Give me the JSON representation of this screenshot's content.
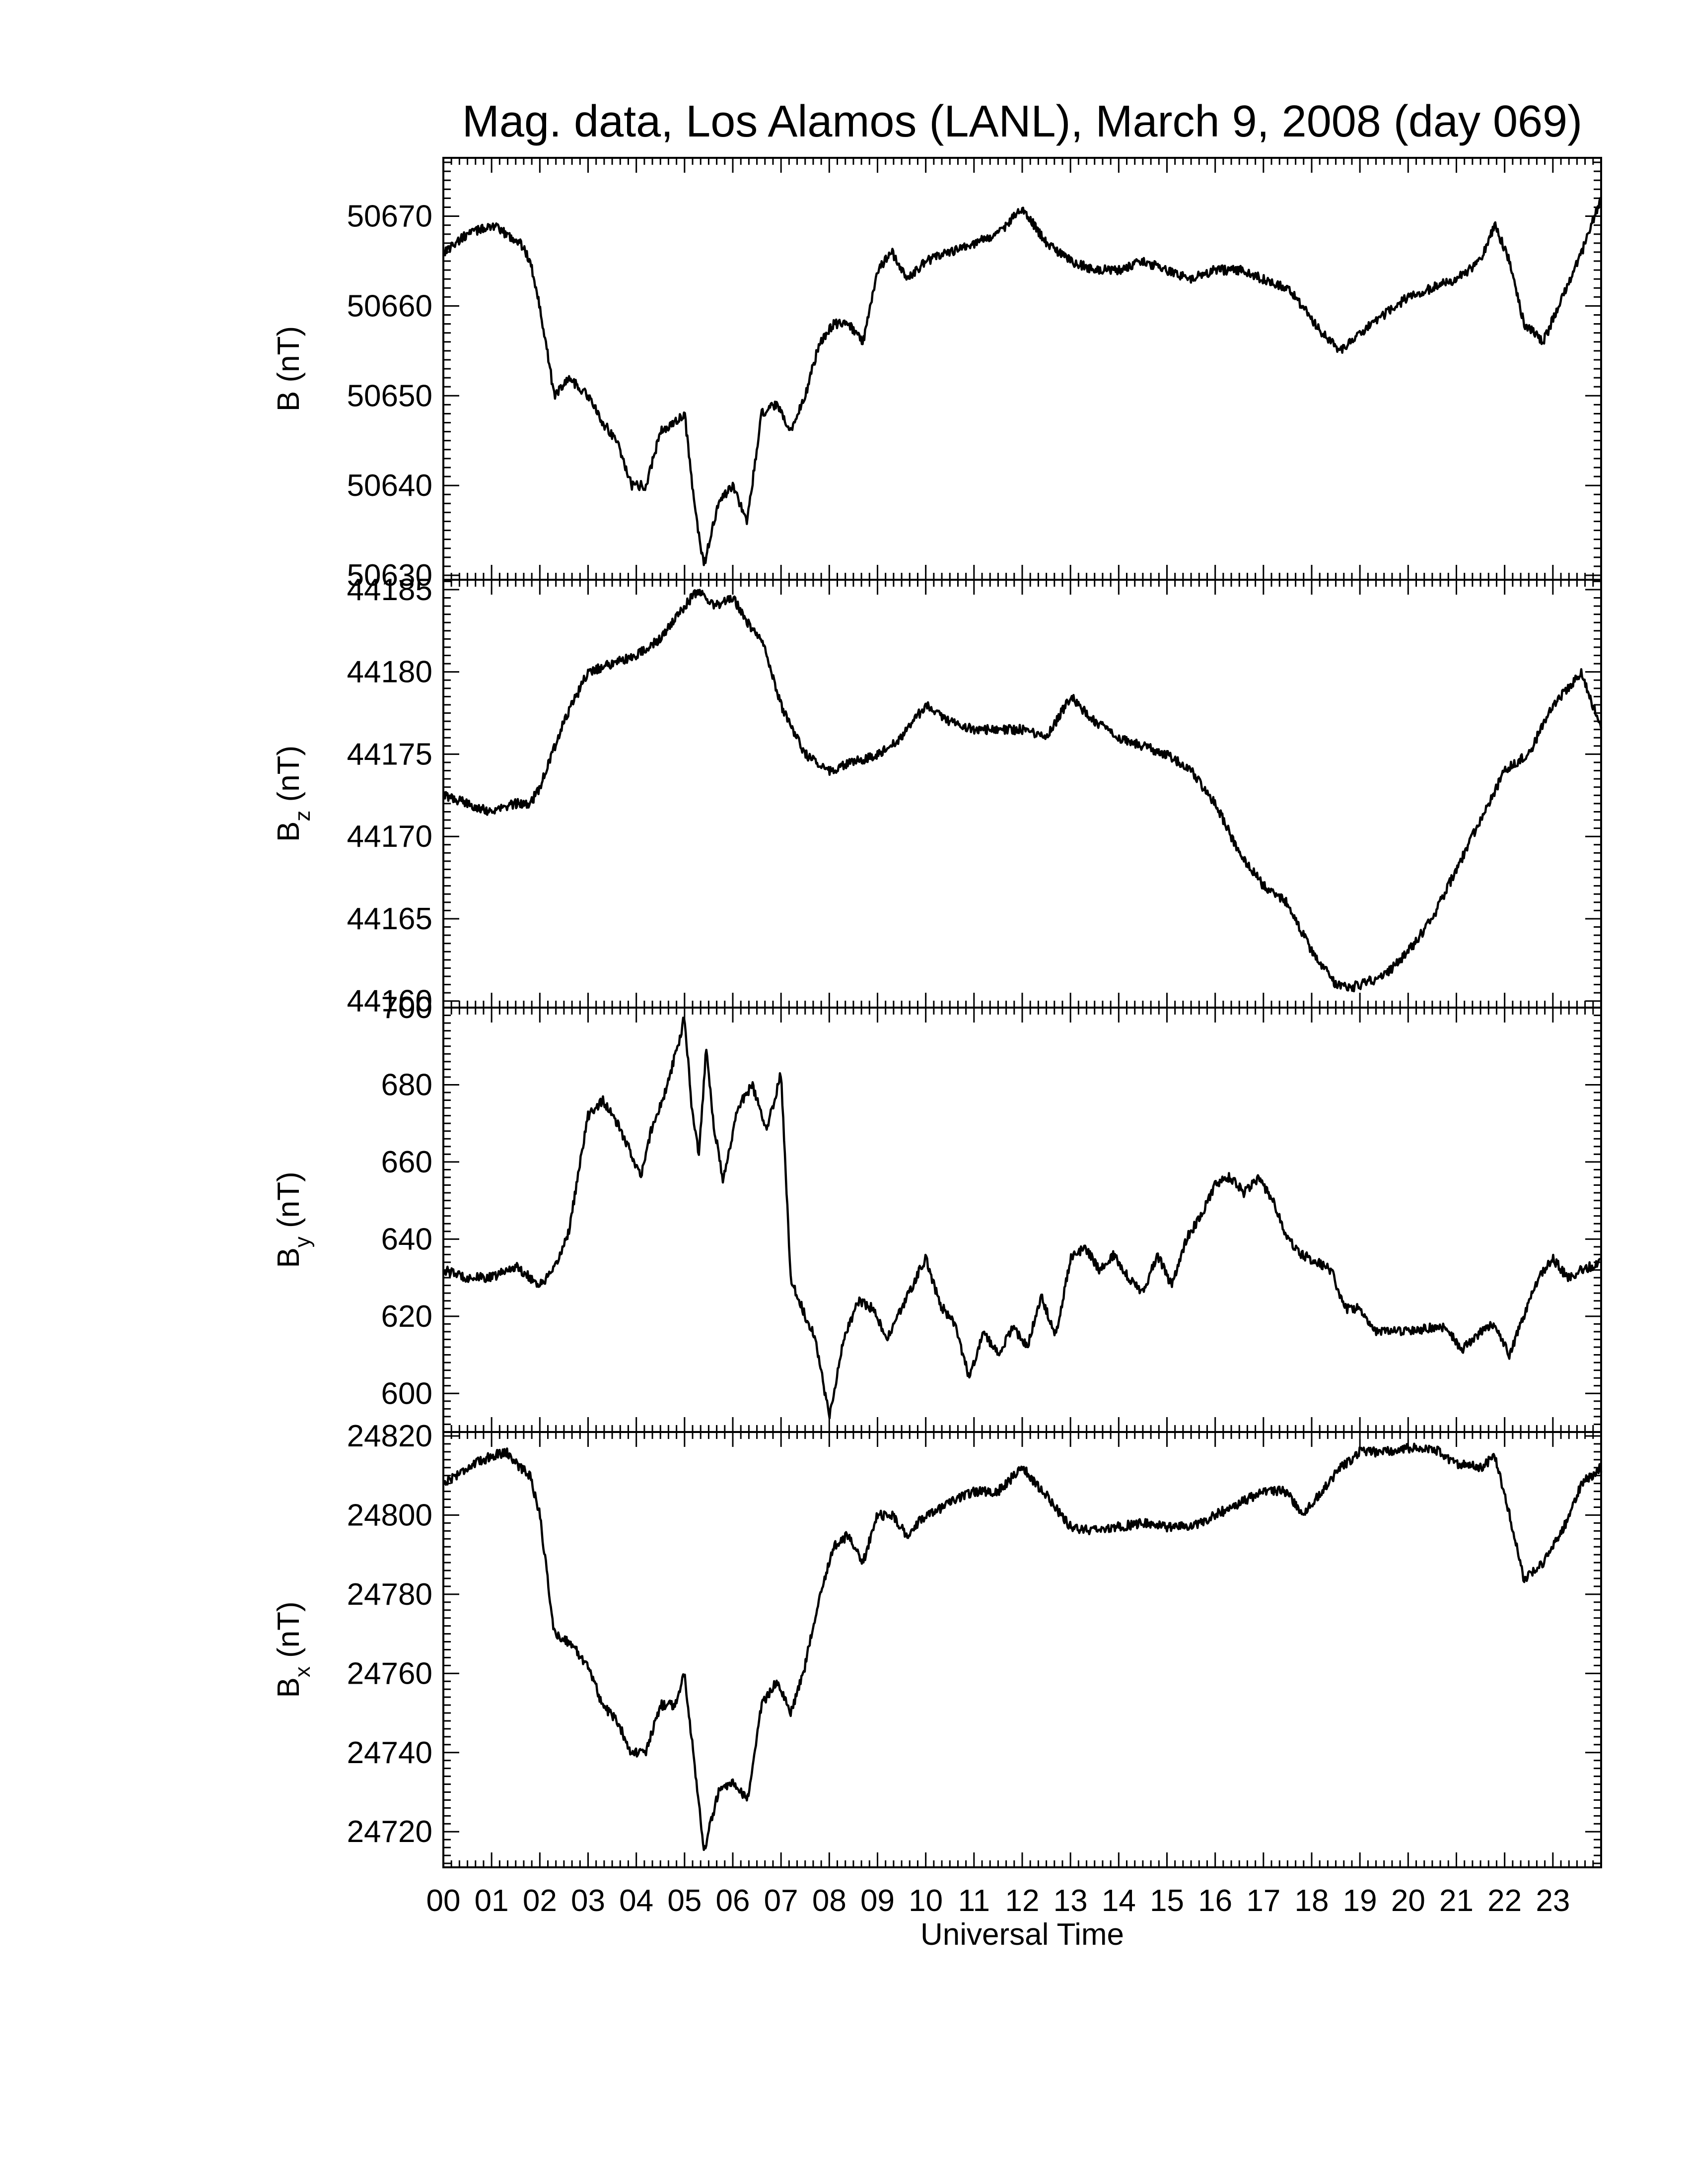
{
  "chart_data": {
    "type": "line",
    "title": "Mag. data, Los Alamos (LANL), March 9, 2008 (day 069)",
    "xlabel": "Universal Time",
    "x_tick_labels": [
      "00",
      "01",
      "02",
      "03",
      "04",
      "05",
      "06",
      "07",
      "08",
      "09",
      "10",
      "11",
      "12",
      "13",
      "14",
      "15",
      "16",
      "17",
      "18",
      "19",
      "20",
      "21",
      "22",
      "23"
    ],
    "xlim": [
      0,
      24
    ],
    "line_color": "#000000",
    "panels": [
      {
        "name": "B",
        "ylabel_main": "B (nT)",
        "ylabel_sub": "",
        "ylabel_unit": "",
        "ylim": [
          50629.5,
          50676.5
        ],
        "y_ticks": [
          50630,
          50640,
          50650,
          50660,
          50670
        ],
        "y_tick_labels": [
          "50630",
          "50640",
          "50650",
          "50660",
          "50670"
        ],
        "series": {
          "x": [
            0,
            0.5,
            1.0,
            1.3,
            1.6,
            1.8,
            2.0,
            2.3,
            2.6,
            3.0,
            3.3,
            3.6,
            3.9,
            4.2,
            4.5,
            4.8,
            5.0,
            5.2,
            5.4,
            5.7,
            6.0,
            6.3,
            6.6,
            6.9,
            7.2,
            7.5,
            7.8,
            8.1,
            8.4,
            8.7,
            9.0,
            9.3,
            9.6,
            10.0,
            10.5,
            11.0,
            11.5,
            12.0,
            12.5,
            13.0,
            13.5,
            14.0,
            14.5,
            15.0,
            15.5,
            16.0,
            16.5,
            17.0,
            17.5,
            17.8,
            18.2,
            18.6,
            19.0,
            19.5,
            20.0,
            20.5,
            21.0,
            21.5,
            21.8,
            22.1,
            22.4,
            22.8,
            23.2,
            23.6,
            24.0
          ],
          "y": [
            50666,
            50668,
            50669,
            50668,
            50667,
            50665,
            50660,
            50650,
            50652,
            50650,
            50647,
            50645,
            50640,
            50640,
            50646,
            50647,
            50648,
            50638,
            50631,
            50638,
            50640,
            50636,
            50648,
            50649,
            50646,
            50650,
            50656,
            50658,
            50658,
            50656,
            50664,
            50666,
            50663,
            50665,
            50666,
            50667,
            50668,
            50671,
            50667,
            50665,
            50664,
            50664,
            50665,
            50664,
            50663,
            50664,
            50664,
            50663,
            50662,
            50660,
            50657,
            50655,
            50657,
            50659,
            50661,
            50662,
            50663,
            50665,
            50669,
            50665,
            50658,
            50656,
            50661,
            50666,
            50672
          ]
        }
      },
      {
        "name": "Bz",
        "ylabel_main": "B",
        "ylabel_sub": "z",
        "ylabel_unit": " (nT)",
        "ylim": [
          44159.6,
          44185.6
        ],
        "y_ticks": [
          44160,
          44165,
          44170,
          44175,
          44180,
          44185
        ],
        "y_tick_labels": [
          "44160",
          "44165",
          "44170",
          "44175",
          "44180",
          "44185"
        ],
        "series": {
          "x": [
            0,
            0.5,
            1.0,
            1.5,
            1.8,
            2.0,
            2.5,
            3.0,
            3.5,
            4.0,
            4.5,
            5.0,
            5.3,
            5.6,
            6.0,
            6.3,
            6.6,
            7.0,
            7.5,
            8.0,
            8.5,
            9.0,
            9.5,
            10.0,
            10.5,
            11.0,
            11.5,
            12.0,
            12.5,
            13.0,
            13.5,
            14.0,
            14.5,
            15.0,
            15.5,
            16.0,
            16.5,
            17.0,
            17.5,
            18.0,
            18.5,
            18.8,
            19.2,
            19.5,
            20.0,
            20.5,
            21.0,
            21.5,
            22.0,
            22.5,
            23.0,
            23.3,
            23.6,
            24.0
          ],
          "y": [
            44172.5,
            44172,
            44171.5,
            44172,
            44172,
            44173,
            44177,
            44180,
            44180.5,
            44181,
            44182,
            44184,
            44185,
            44184,
            44184.5,
            44183,
            44182,
            44178,
            44175,
            44174,
            44174.5,
            44175,
            44176,
            44178,
            44177,
            44176.5,
            44176.5,
            44176.5,
            44176,
            44178.5,
            44177,
            44176,
            44175.5,
            44175,
            44174,
            44172,
            44169,
            44167,
            44166,
            44163,
            44161,
            44160.8,
            44161.2,
            44161.5,
            44163,
            44165,
            44168,
            44171,
            44174,
            44175,
            44178,
            44179,
            44180,
            44176.5
          ]
        }
      },
      {
        "name": "By",
        "ylabel_main": "B",
        "ylabel_sub": "y",
        "ylabel_unit": " (nT)",
        "ylim": [
          590,
          700
        ],
        "y_ticks": [
          600,
          620,
          640,
          660,
          680,
          700
        ],
        "y_tick_labels": [
          "600",
          "620",
          "640",
          "660",
          "680",
          "700"
        ],
        "series": {
          "x": [
            0,
            0.5,
            1.0,
            1.5,
            2.0,
            2.3,
            2.6,
            3.0,
            3.3,
            3.6,
            3.9,
            4.1,
            4.3,
            4.6,
            4.9,
            5.0,
            5.15,
            5.3,
            5.45,
            5.6,
            5.8,
            6.1,
            6.4,
            6.7,
            7.0,
            7.2,
            7.5,
            7.7,
            8.0,
            8.3,
            8.6,
            8.9,
            9.2,
            9.5,
            9.8,
            10.0,
            10.3,
            10.6,
            10.9,
            11.2,
            11.5,
            11.8,
            12.1,
            12.4,
            12.7,
            13.0,
            13.3,
            13.6,
            13.9,
            14.2,
            14.5,
            14.8,
            15.1,
            15.4,
            15.7,
            16.0,
            16.3,
            16.6,
            16.9,
            17.2,
            17.5,
            17.8,
            18.1,
            18.4,
            18.7,
            19.0,
            19.3,
            19.6,
            20.0,
            20.4,
            20.8,
            21.1,
            21.5,
            21.8,
            22.1,
            22.4,
            22.7,
            23.0,
            23.3,
            23.6,
            24.0
          ],
          "y": [
            632,
            630,
            630,
            633,
            628,
            632,
            642,
            672,
            676,
            670,
            662,
            656,
            668,
            678,
            692,
            698,
            674,
            662,
            690,
            670,
            655,
            674,
            680,
            668,
            683,
            630,
            620,
            615,
            594,
            614,
            624,
            622,
            614,
            622,
            630,
            635,
            623,
            618,
            604,
            616,
            610,
            617,
            612,
            625,
            615,
            635,
            638,
            632,
            636,
            630,
            626,
            636,
            628,
            640,
            646,
            654,
            656,
            652,
            656,
            650,
            640,
            636,
            634,
            632,
            622,
            622,
            616,
            616,
            616,
            617,
            617,
            611,
            616,
            618,
            610,
            620,
            630,
            635,
            630,
            632,
            634
          ]
        }
      },
      {
        "name": "Bx",
        "ylabel_main": "B",
        "ylabel_sub": "x",
        "ylabel_unit": " (nT)",
        "ylim": [
          24711,
          24821
        ],
        "y_ticks": [
          24720,
          24740,
          24760,
          24780,
          24800,
          24820
        ],
        "y_tick_labels": [
          "24720",
          "24740",
          "24760",
          "24780",
          "24800",
          "24820"
        ],
        "series": {
          "x": [
            0,
            0.5,
            1.0,
            1.3,
            1.6,
            1.8,
            2.0,
            2.3,
            2.6,
            3.0,
            3.3,
            3.6,
            3.9,
            4.2,
            4.5,
            4.8,
            5.0,
            5.2,
            5.4,
            5.7,
            6.0,
            6.3,
            6.6,
            6.9,
            7.2,
            7.5,
            7.8,
            8.1,
            8.4,
            8.7,
            9.0,
            9.3,
            9.6,
            10.0,
            10.5,
            11.0,
            11.5,
            12.0,
            12.5,
            13.0,
            13.5,
            14.0,
            14.5,
            15.0,
            15.5,
            16.0,
            16.5,
            17.0,
            17.5,
            17.8,
            18.2,
            18.6,
            19.0,
            19.5,
            20.0,
            20.5,
            21.0,
            21.5,
            21.8,
            22.1,
            22.4,
            22.8,
            23.2,
            23.6,
            24.0
          ],
          "y": [
            24808,
            24812,
            24815,
            24816,
            24812,
            24810,
            24800,
            24770,
            24768,
            24762,
            24752,
            24748,
            24740,
            24740,
            24752,
            24752,
            24760,
            24738,
            24715,
            24730,
            24732,
            24728,
            24752,
            24758,
            24750,
            24762,
            24780,
            24792,
            24795,
            24788,
            24800,
            24800,
            24795,
            24800,
            24803,
            24806,
            24806,
            24812,
            24805,
            24797,
            24796,
            24797,
            24798,
            24797,
            24797,
            24800,
            24803,
            24806,
            24806,
            24800,
            24806,
            24812,
            24816,
            24816,
            24817,
            24817,
            24813,
            24812,
            24815,
            24800,
            24784,
            24788,
            24796,
            24808,
            24812
          ]
        }
      }
    ]
  }
}
